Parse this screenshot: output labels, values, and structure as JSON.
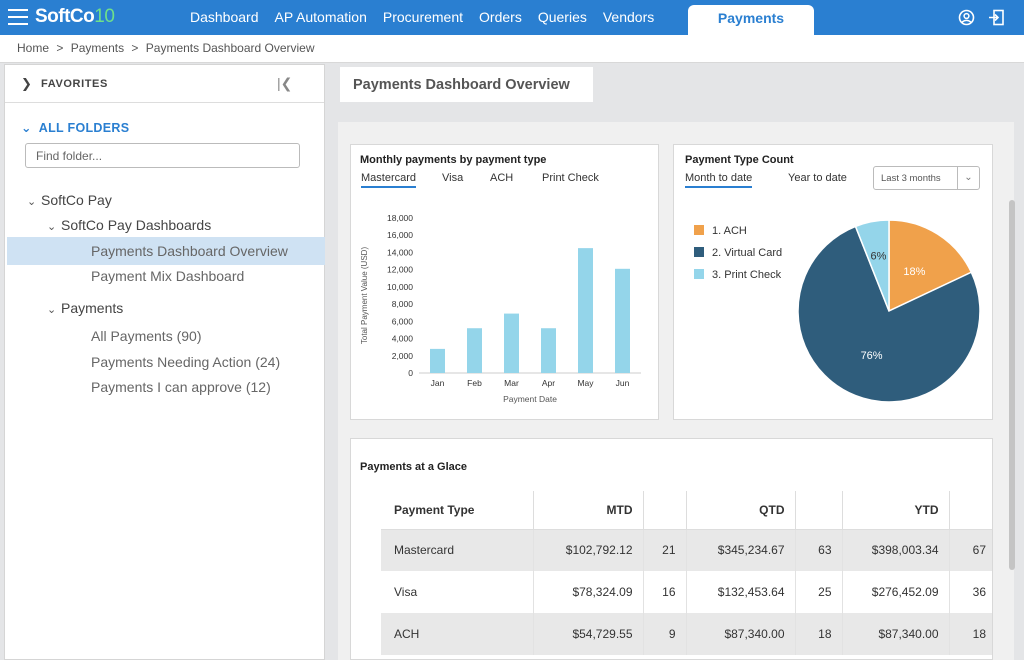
{
  "app": {
    "logo_text": "SoftCo",
    "logo_version": "10"
  },
  "nav": {
    "items": [
      "Dashboard",
      "AP Automation",
      "Procurement",
      "Orders",
      "Queries",
      "Vendors"
    ],
    "active": "Payments"
  },
  "breadcrumb": {
    "items": [
      "Home",
      ">",
      "Payments",
      ">",
      "Payments Dashboard Overview"
    ]
  },
  "sidebar": {
    "favorites_label": "FAVORITES",
    "all_folders_label": "ALL FOLDERS",
    "find_placeholder": "Find folder...",
    "tree": {
      "root": "SoftCo Pay",
      "dashboards": "SoftCo Pay Dashboards",
      "dash_overview": "Payments Dashboard Overview",
      "dash_mix": "Payment Mix Dashboard",
      "payments": "Payments",
      "all_payments": "All Payments (90)",
      "needing_action": "Payments Needing Action (24)",
      "can_approve": "Payments I can approve (12)"
    }
  },
  "page": {
    "tab_title": "Payments Dashboard Overview"
  },
  "colors": {
    "accent": "#2a7fd1",
    "bar": "#94d5ea",
    "ach": "#f0a14b",
    "virtual_card": "#2f5d7c",
    "print_check": "#94d5ea"
  },
  "monthly_card": {
    "title": "Monthly payments by payment type",
    "tabs": [
      "Mastercard",
      "Visa",
      "ACH",
      "Print Check"
    ],
    "active_tab": "Mastercard"
  },
  "count_card": {
    "title": "Payment Type Count",
    "tabs": [
      "Month to date",
      "Year to date"
    ],
    "active_tab": "Month to date",
    "range_select": "Last 3 months"
  },
  "chart_data": [
    {
      "type": "bar",
      "title": "Monthly payments by payment type",
      "categories": [
        "Jan",
        "Feb",
        "Mar",
        "Apr",
        "May",
        "Jun"
      ],
      "values": [
        2800,
        5200,
        6900,
        5200,
        14500,
        12100
      ],
      "xlabel": "Payment Date",
      "ylabel": "Total Payment Value (USD)",
      "ylim": [
        0,
        18000
      ],
      "yticks": [
        "0",
        "2,000",
        "4,000",
        "6,000",
        "8,000",
        "10,000",
        "12,000",
        "14,000",
        "16,000",
        "18,000"
      ],
      "grid": false
    },
    {
      "type": "pie",
      "title": "Payment Type Count",
      "legend": [
        "1.  ACH",
        "2.  Virtual Card",
        "3.  Print Check"
      ],
      "series": [
        {
          "name": "ACH",
          "value": 18,
          "label": "18%"
        },
        {
          "name": "Virtual Card",
          "value": 76,
          "label": "76%"
        },
        {
          "name": "Print Check",
          "value": 6,
          "label": "6%"
        }
      ],
      "legend_position": "left"
    }
  ],
  "glance": {
    "title": "Payments at a Glace",
    "headers": [
      "Payment Type",
      "MTD",
      "",
      "QTD",
      "",
      "YTD",
      ""
    ],
    "rows": [
      [
        "Mastercard",
        "$102,792.12",
        "21",
        "$345,234.67",
        "63",
        "$398,003.34",
        "67"
      ],
      [
        "Visa",
        "$78,324.09",
        "16",
        "$132,453.64",
        "25",
        "$276,452.09",
        "36"
      ],
      [
        "ACH",
        "$54,729.55",
        "9",
        "$87,340.00",
        "18",
        "$87,340.00",
        "18"
      ]
    ]
  }
}
